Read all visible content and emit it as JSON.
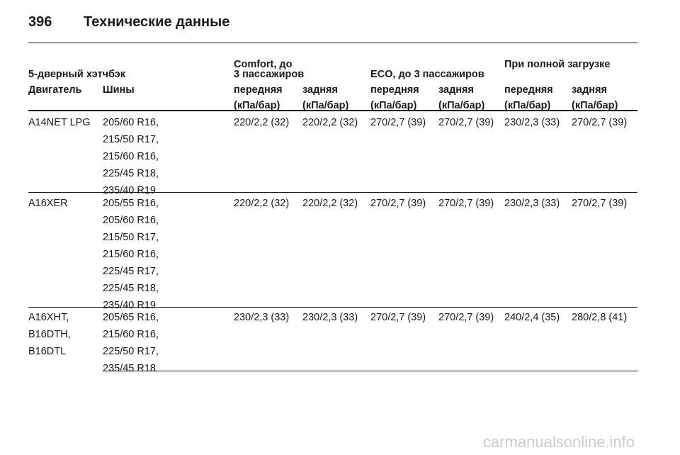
{
  "header": {
    "page_number": "396",
    "title": "Технические данные"
  },
  "table": {
    "groups": [
      [
        "5-дверный хэтчбэк"
      ],
      [
        "Comfort, до",
        "3 пассажиров"
      ],
      [
        "ECO, до 3 пассажиров"
      ],
      [
        "При полной загрузке"
      ]
    ],
    "columns": [
      [
        "Двигатель"
      ],
      [
        "Шины"
      ],
      [
        "передняя",
        "(кПа/бар)"
      ],
      [
        "задняя",
        "(кПа/бар)"
      ],
      [
        "передняя",
        "(кПа/бар)"
      ],
      [
        "задняя",
        "(кПа/бар)"
      ],
      [
        "передняя",
        "(кПа/бар)"
      ],
      [
        "задняя",
        "(кПа/бар)"
      ]
    ],
    "rows": [
      [
        [
          "A14NET LPG"
        ],
        [
          "205/60 R16,",
          "215/50 R17,",
          "215/60 R16,",
          "225/45 R18,",
          "235/40 R19"
        ],
        [
          "220/2,2 (32)"
        ],
        [
          "220/2,2 (32)"
        ],
        [
          "270/2,7 (39)"
        ],
        [
          "270/2,7 (39)"
        ],
        [
          "230/2,3 (33)"
        ],
        [
          "270/2,7 (39)"
        ]
      ],
      [
        [
          "A16XER"
        ],
        [
          "205/55 R16,",
          "205/60 R16,",
          "215/50 R17,",
          "215/60 R16,",
          "225/45 R17,",
          "225/45 R18,",
          "235/40 R19"
        ],
        [
          "220/2,2 (32)"
        ],
        [
          "220/2,2 (32)"
        ],
        [
          "270/2,7 (39)"
        ],
        [
          "270/2,7 (39)"
        ],
        [
          "230/2,3 (33)"
        ],
        [
          "270/2,7 (39)"
        ]
      ],
      [
        [
          "A16XHT,",
          "B16DTH,",
          "B16DTL"
        ],
        [
          "205/65 R16,",
          "215/60 R16,",
          "225/50 R17,",
          "235/45 R18"
        ],
        [
          "230/2,3 (33)"
        ],
        [
          "230/2,3 (33)"
        ],
        [
          "270/2,7 (39)"
        ],
        [
          "270/2,7 (39)"
        ],
        [
          "240/2,4 (35)"
        ],
        [
          "280/2,8 (41)"
        ]
      ]
    ]
  },
  "watermark": "carmanualsonline.info"
}
